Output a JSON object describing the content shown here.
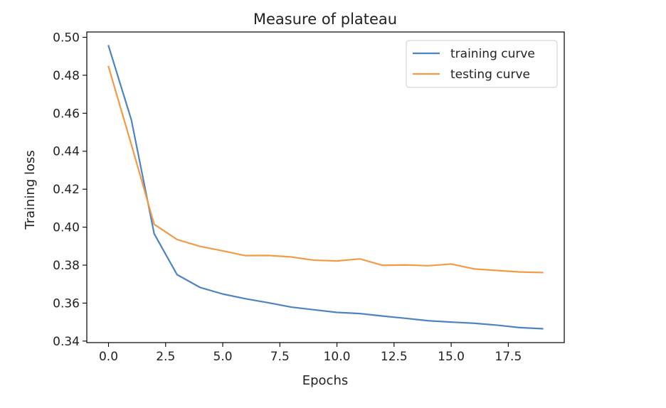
{
  "chart_data": {
    "type": "line",
    "title": "Measure of plateau",
    "xlabel": "Epochs",
    "ylabel": "Training loss",
    "xlim": [
      -0.95,
      19.95
    ],
    "ylim": [
      0.3392,
      0.5028
    ],
    "x_ticks": [
      0.0,
      2.5,
      5.0,
      7.5,
      10.0,
      12.5,
      15.0,
      17.5
    ],
    "x_tick_labels": [
      "0.0",
      "2.5",
      "5.0",
      "7.5",
      "10.0",
      "12.5",
      "15.0",
      "17.5"
    ],
    "y_ticks": [
      0.34,
      0.36,
      0.38,
      0.4,
      0.42,
      0.44,
      0.46,
      0.48,
      0.5
    ],
    "y_tick_labels": [
      "0.34",
      "0.36",
      "0.38",
      "0.40",
      "0.42",
      "0.44",
      "0.46",
      "0.48",
      "0.50"
    ],
    "grid": false,
    "legend_position": "top-right",
    "x": [
      0,
      1,
      2,
      3,
      4,
      5,
      6,
      7,
      8,
      9,
      10,
      11,
      12,
      13,
      14,
      15,
      16,
      17,
      18,
      19
    ],
    "series": [
      {
        "name": "training curve",
        "color": "#4c84c0",
        "values": [
          0.4955,
          0.4565,
          0.3965,
          0.375,
          0.3683,
          0.3648,
          0.3623,
          0.3602,
          0.3579,
          0.3565,
          0.3551,
          0.3545,
          0.3532,
          0.352,
          0.3507,
          0.35,
          0.3494,
          0.3484,
          0.3471,
          0.3465
        ]
      },
      {
        "name": "testing curve",
        "color": "#f39a45",
        "values": [
          0.4845,
          0.4435,
          0.4015,
          0.3935,
          0.3899,
          0.3875,
          0.385,
          0.3851,
          0.3843,
          0.3826,
          0.3822,
          0.3833,
          0.3799,
          0.3801,
          0.3797,
          0.3806,
          0.378,
          0.3772,
          0.3764,
          0.3761
        ]
      }
    ]
  }
}
